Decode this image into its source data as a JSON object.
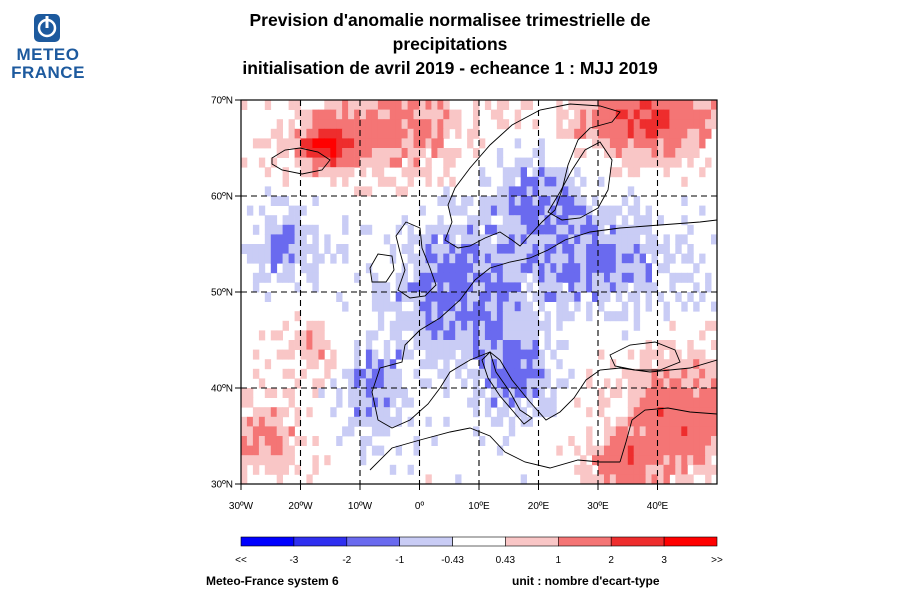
{
  "logo": {
    "line1": "METEO",
    "line2": "FRANCE"
  },
  "title": {
    "line1": "Prevision d'anomalie normalisee trimestrielle de",
    "line2": "precipitations",
    "line3": "initialisation de avril 2019  -  echeance 1 : MJJ 2019"
  },
  "map": {
    "lat_labels": [
      "70ºN",
      "60ºN",
      "50ºN",
      "40ºN",
      "30ºN"
    ],
    "lon_labels": [
      "30ºW",
      "20ºW",
      "10ºW",
      "0º",
      "10ºE",
      "20ºE",
      "30ºE",
      "40ºE"
    ],
    "lat_range": [
      30,
      70
    ],
    "lon_range": [
      -30,
      50
    ],
    "grid": "dashed every 10 degrees",
    "anomaly_regions": [
      {
        "area": "Norwegian Sea / north of Scotland",
        "sign": "positive",
        "level": 1.5
      },
      {
        "area": "Iceland",
        "sign": "positive",
        "level": 2.5
      },
      {
        "area": "Barents Sea / northern Russia",
        "sign": "positive",
        "level": 2.0
      },
      {
        "area": "Western and Central Europe",
        "sign": "negative",
        "level": -1.2
      },
      {
        "area": "Scandinavia and Baltic",
        "sign": "negative",
        "level": -1.0
      },
      {
        "area": "Italy and Balkans",
        "sign": "negative",
        "level": -1.3
      },
      {
        "area": "Eastern Europe / Russia",
        "sign": "negative",
        "level": -1.1
      },
      {
        "area": "Middle East / Turkey",
        "sign": "positive",
        "level": 1.8
      },
      {
        "area": "Atlantic off Portugal / Azores",
        "sign": "positive",
        "level": 1.2
      }
    ]
  },
  "colorbar": {
    "labels": [
      "<<",
      "-3",
      "-2",
      "-1",
      "-0.43",
      "0.43",
      "1",
      "2",
      "3",
      ">>"
    ],
    "colors": [
      "#0000ff",
      "#2f2ff0",
      "#6a6aef",
      "#c9ccf5",
      "#ffffff",
      "#f9c6c6",
      "#f47575",
      "#ee2d2d",
      "#ff0000"
    ]
  },
  "footer": {
    "model": "Meteo-France system 6",
    "unit": "unit : nombre d'ecart-type"
  }
}
